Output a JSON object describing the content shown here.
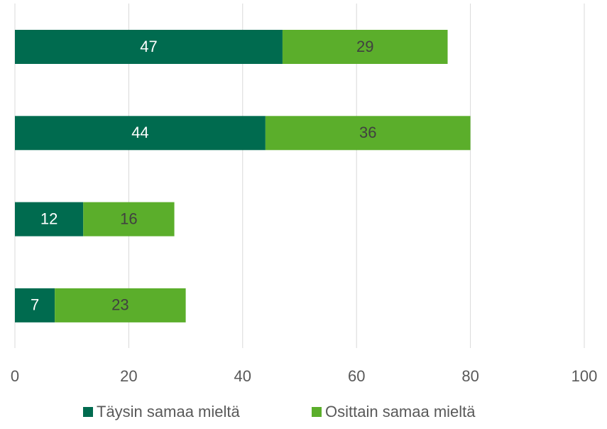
{
  "chart_data": {
    "type": "bar",
    "orientation": "horizontal",
    "stacked": true,
    "categories": [
      null,
      null,
      null,
      null
    ],
    "series": [
      {
        "name": "Täysin samaa mieltä",
        "color": "#006b4f",
        "label_color": "#ffffff",
        "values": [
          47,
          44,
          12,
          7
        ]
      },
      {
        "name": "Osittain samaa mieltä",
        "color": "#5bae2b",
        "label_color": "#404040",
        "values": [
          29,
          36,
          16,
          23
        ]
      }
    ],
    "xlim": [
      0,
      100
    ],
    "xticks": [
      0,
      20,
      40,
      60,
      80,
      100
    ],
    "grid": true,
    "legend": "bottom"
  }
}
